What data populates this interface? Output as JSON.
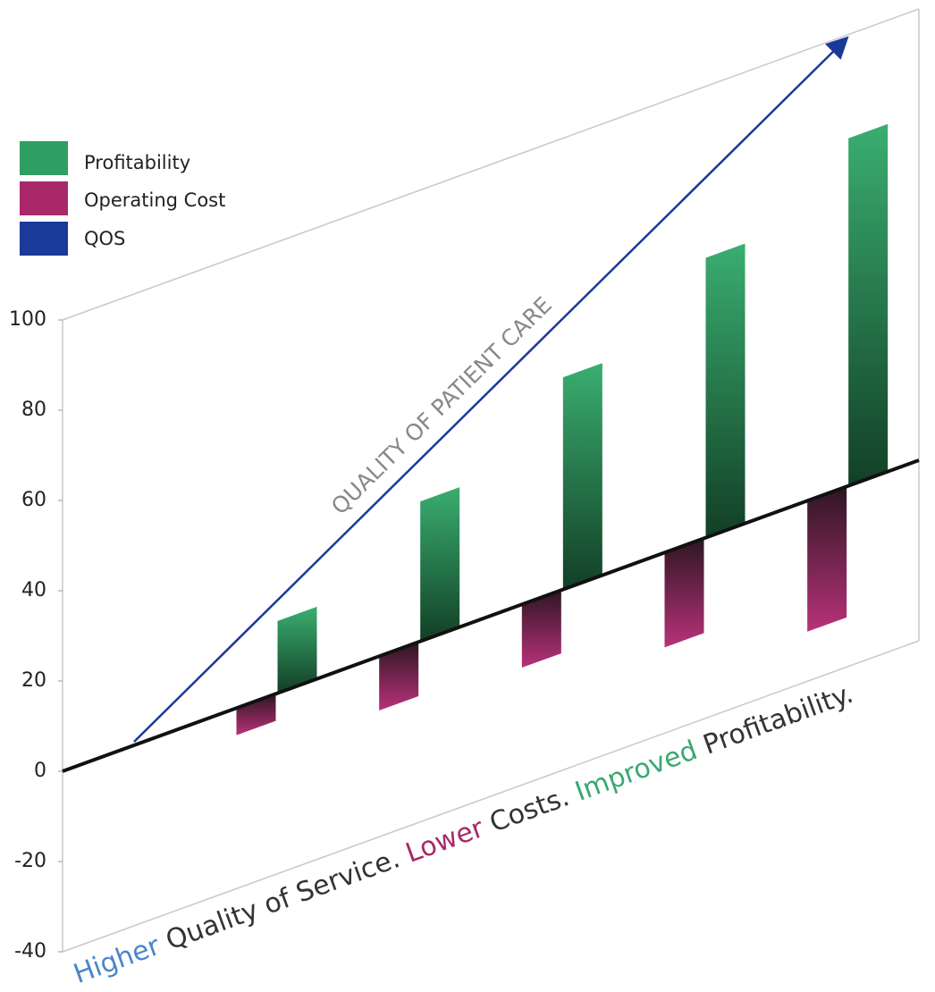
{
  "chart_data": {
    "type": "bar",
    "categories": [
      null,
      null,
      null,
      null,
      null
    ],
    "series": [
      {
        "name": "Profitability",
        "color": "#2e9e62",
        "values": [
          16,
          31,
          47,
          62,
          77
        ]
      },
      {
        "name": "Operating Cost",
        "color": "#a8286a",
        "values": [
          -6,
          -12,
          -14,
          -21,
          -29
        ]
      }
    ],
    "trend": {
      "name": "QOS",
      "color": "#1a3a9a",
      "label": "QUALITY OF PATIENT CARE"
    },
    "ylim": [
      -40,
      100
    ],
    "yticks": [
      -40,
      -20,
      0,
      20,
      40,
      60,
      80,
      100
    ],
    "caption": [
      {
        "text": "Higher",
        "color": "#4a86c8"
      },
      {
        "text": "Quality of Service.",
        "color": "#333333"
      },
      {
        "text": "Lower",
        "color": "#a8286a"
      },
      {
        "text": "Costs.",
        "color": "#333333"
      },
      {
        "text": "Improved",
        "color": "#3aa870"
      },
      {
        "text": "Profitability.",
        "color": "#333333"
      }
    ]
  }
}
